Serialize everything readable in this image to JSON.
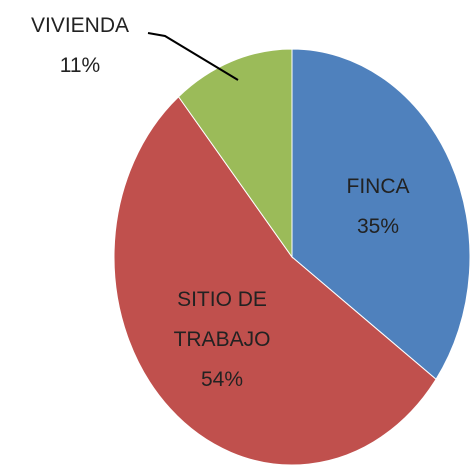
{
  "chart_data": {
    "type": "pie",
    "categories": [
      "FINCA",
      "SITIO DE TRABAJO",
      "VIVIENDA"
    ],
    "values": [
      35,
      54,
      11
    ],
    "value_labels": [
      "35%",
      "54%",
      "11%"
    ],
    "colors": [
      "#4f81bd",
      "#c0504d",
      "#9bbb59"
    ]
  }
}
